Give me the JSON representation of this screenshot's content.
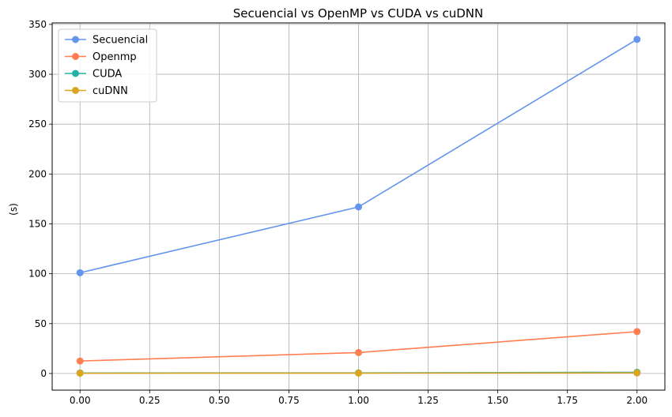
{
  "chart_data": {
    "type": "line",
    "title": "Secuencial vs OpenMP vs CUDA vs cuDNN",
    "xlabel": "",
    "ylabel": "(s)",
    "x": [
      0,
      1,
      2
    ],
    "xlim": [
      -0.1,
      2.1
    ],
    "ylim": [
      -16.7,
      351.5
    ],
    "xticks": [
      0.0,
      0.25,
      0.5,
      0.75,
      1.0,
      1.25,
      1.5,
      1.75,
      2.0
    ],
    "xtick_labels": [
      "0.00",
      "0.25",
      "0.50",
      "0.75",
      "1.00",
      "1.25",
      "1.50",
      "1.75",
      "2.00"
    ],
    "yticks": [
      0,
      50,
      100,
      150,
      200,
      250,
      300,
      350
    ],
    "ytick_labels": [
      "0",
      "50",
      "100",
      "150",
      "200",
      "250",
      "300",
      "350"
    ],
    "grid": true,
    "legend_position": "top-left",
    "series": [
      {
        "name": "Secuencial",
        "color": "#6495ED",
        "values": [
          101,
          167,
          335
        ]
      },
      {
        "name": "Openmp",
        "color": "#FF7F50",
        "values": [
          12.5,
          21,
          42
        ]
      },
      {
        "name": "CUDA",
        "color": "#20B2AA",
        "values": [
          0.5,
          0.6,
          1.2
        ]
      },
      {
        "name": "cuDNN",
        "color": "#DAA520",
        "values": [
          0.3,
          0.4,
          0.6
        ]
      }
    ]
  }
}
